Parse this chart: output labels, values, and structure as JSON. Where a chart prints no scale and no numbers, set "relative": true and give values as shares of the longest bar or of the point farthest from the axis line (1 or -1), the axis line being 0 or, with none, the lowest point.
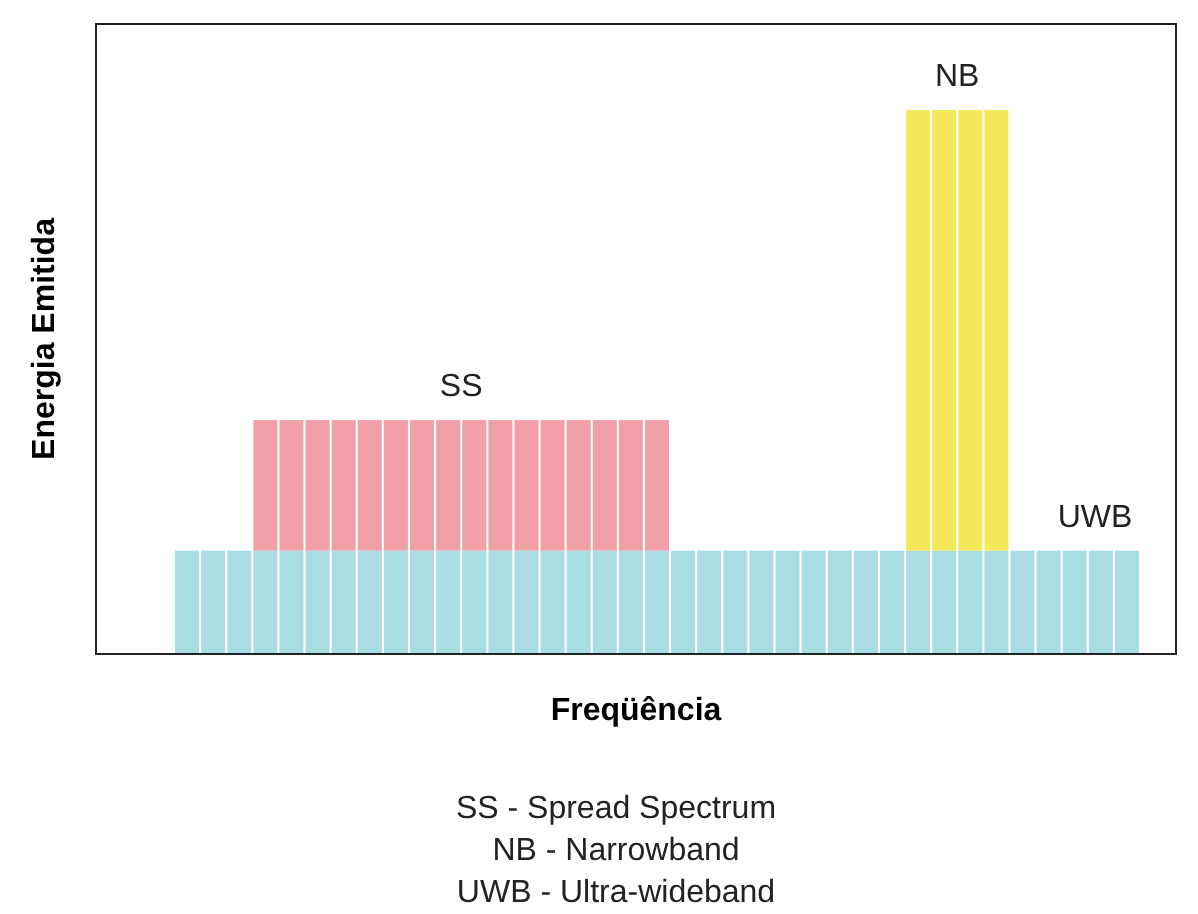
{
  "chart_data": {
    "type": "bar",
    "stacked": true,
    "relative": true,
    "xlabel": "Freqüência",
    "ylabel": "Energia Emitida",
    "categories": [
      null,
      null,
      null,
      null,
      null,
      null,
      null,
      null,
      null,
      null,
      null,
      null,
      null,
      null,
      null,
      null,
      null,
      null,
      null,
      null,
      null,
      null,
      null,
      null,
      null,
      null,
      null,
      null,
      null,
      null,
      null,
      null,
      null,
      null,
      null,
      null,
      null
    ],
    "series": [
      {
        "name": "UWB",
        "color": "#a8dde4",
        "values": [
          0.19,
          0.19,
          0.19,
          0.19,
          0.19,
          0.19,
          0.19,
          0.19,
          0.19,
          0.19,
          0.19,
          0.19,
          0.19,
          0.19,
          0.19,
          0.19,
          0.19,
          0.19,
          0.19,
          0.19,
          0.19,
          0.19,
          0.19,
          0.19,
          0.19,
          0.19,
          0.19,
          0.19,
          0.19,
          0.19,
          0.19,
          0.19,
          0.19,
          0.19,
          0.19,
          0.19,
          0.19
        ]
      },
      {
        "name": "SS",
        "color": "#f2a0a8",
        "values": [
          null,
          null,
          null,
          0.24,
          0.24,
          0.24,
          0.24,
          0.24,
          0.24,
          0.24,
          0.24,
          0.24,
          0.24,
          0.24,
          0.24,
          0.24,
          0.24,
          0.24,
          0.24,
          null,
          null,
          null,
          null,
          null,
          null,
          null,
          null,
          null,
          null,
          null,
          null,
          null,
          null,
          null,
          null,
          null,
          null
        ]
      },
      {
        "name": "NB",
        "color": "#f5e85a",
        "values": [
          null,
          null,
          null,
          null,
          null,
          null,
          null,
          null,
          null,
          null,
          null,
          null,
          null,
          null,
          null,
          null,
          null,
          null,
          null,
          null,
          null,
          null,
          null,
          null,
          null,
          null,
          null,
          null,
          0.81,
          0.81,
          0.81,
          0.81,
          null,
          null,
          null,
          null,
          null
        ]
      }
    ],
    "annotations": [
      "SS - Spread Spectrum",
      "NB - Narrowband",
      "UWB - Ultra-wideband"
    ]
  }
}
